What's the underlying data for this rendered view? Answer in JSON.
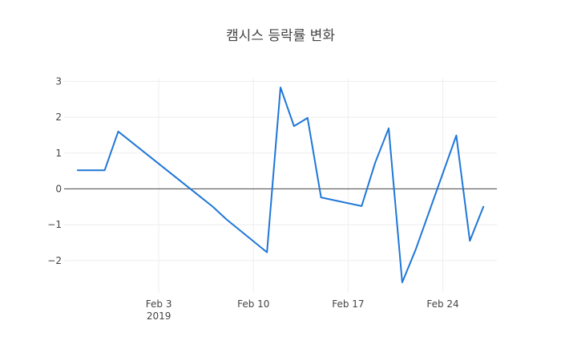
{
  "chart_data": {
    "type": "line",
    "title": "캠시스 등락률 변화",
    "xlabel": "",
    "ylabel": "",
    "x_axis_type": "date",
    "xlim": [
      "2019-01-27",
      "2019-02-28"
    ],
    "ylim": [
      -2.9,
      3.3
    ],
    "grid": true,
    "zero_line": true,
    "legend": "none",
    "x_ticks": [
      {
        "date": "2019-02-03",
        "label": "Feb 3",
        "sublabel": "2019"
      },
      {
        "date": "2019-02-10",
        "label": "Feb 10",
        "sublabel": ""
      },
      {
        "date": "2019-02-17",
        "label": "Feb 17",
        "sublabel": ""
      },
      {
        "date": "2019-02-24",
        "label": "Feb 24",
        "sublabel": ""
      }
    ],
    "y_ticks": [
      {
        "value": 3,
        "label": "3"
      },
      {
        "value": 2,
        "label": "2"
      },
      {
        "value": 1,
        "label": "1"
      },
      {
        "value": 0,
        "label": "0"
      },
      {
        "value": -1,
        "label": "−1"
      },
      {
        "value": -2,
        "label": "−2"
      }
    ],
    "series": [
      {
        "color": "#1f77d8",
        "points": [
          {
            "x": "2019-01-28",
            "y": 0.52
          },
          {
            "x": "2019-01-29",
            "y": 0.52
          },
          {
            "x": "2019-01-30",
            "y": 0.52
          },
          {
            "x": "2019-01-31",
            "y": 1.6
          },
          {
            "x": "2019-02-07",
            "y": -0.5
          },
          {
            "x": "2019-02-08",
            "y": -0.85
          },
          {
            "x": "2019-02-11",
            "y": -1.77
          },
          {
            "x": "2019-02-12",
            "y": 2.83
          },
          {
            "x": "2019-02-13",
            "y": 1.75
          },
          {
            "x": "2019-02-14",
            "y": 1.98
          },
          {
            "x": "2019-02-15",
            "y": -0.24
          },
          {
            "x": "2019-02-18",
            "y": -0.48
          },
          {
            "x": "2019-02-19",
            "y": 0.73
          },
          {
            "x": "2019-02-20",
            "y": 1.69
          },
          {
            "x": "2019-02-21",
            "y": -2.61
          },
          {
            "x": "2019-02-22",
            "y": -1.69
          },
          {
            "x": "2019-02-25",
            "y": 1.49
          },
          {
            "x": "2019-02-26",
            "y": -1.45
          },
          {
            "x": "2019-02-27",
            "y": -0.5
          }
        ]
      }
    ]
  }
}
